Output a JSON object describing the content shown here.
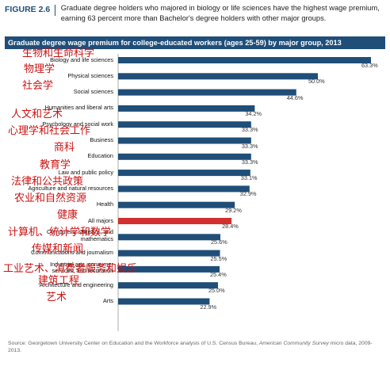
{
  "figure": {
    "label": "FIGURE 2.6",
    "title": "Graduate degree holders who majored in biology or life sciences have the highest wage premium, earning 63 percent more than Bachelor's degree holders with other major groups."
  },
  "colors": {
    "bar": "#1f4e79",
    "highlight": "#d32f2f",
    "annotation": "#cc1111"
  },
  "chart_data": {
    "type": "bar",
    "orientation": "horizontal",
    "title": "Graduate degree wage premium for college-educated workers (ages 25-59) by major group, 2013",
    "categories": [
      "Biology and life sciences",
      "Physical sciences",
      "Social sciences",
      "Humanities and liberal arts",
      "Psychology and social work",
      "Business",
      "Education",
      "Law and public policy",
      "Agriculture and natural resources",
      "Health",
      "All majors",
      "Computers, statistics, and mathematics",
      "Communications and journalism",
      "Industrial arts, consumer services, and recreation",
      "Architecture and engineering",
      "Arts"
    ],
    "values": [
      63.3,
      50.0,
      44.6,
      34.2,
      33.3,
      33.3,
      33.3,
      33.1,
      32.9,
      29.2,
      28.4,
      25.6,
      25.5,
      25.4,
      25.0,
      22.9
    ],
    "value_labels": [
      "63.3%",
      "50.0%",
      "44.6%",
      "34.2%",
      "33.3%",
      "33.3%",
      "33.3%",
      "33.1%",
      "32.9%",
      "29.2%",
      "28.4%",
      "25.6%",
      "25.5%",
      "25.4%",
      "25.0%",
      "22.9%"
    ],
    "highlight_category": "All majors",
    "xlim": [
      0,
      70
    ],
    "grid": false,
    "legend": "none"
  },
  "annotations": [
    "生物和生命科学",
    "物理学",
    "社会学",
    "人文和艺术",
    "心理学和社会工作",
    "商科",
    "教育学",
    "法律和公共政策",
    "农业和自然资源",
    "健康",
    "计算机、统计学和数学",
    "传媒和新闻",
    "工业艺术、消费者服务和娱乐",
    "建筑工程",
    "艺术"
  ],
  "source": {
    "text": "Source: Georgetown University Center on Education and the Workforce analysis of U.S. Census Bureau,",
    "italic": "American Community Survey",
    "text2": "micro data, 2009-2013."
  }
}
